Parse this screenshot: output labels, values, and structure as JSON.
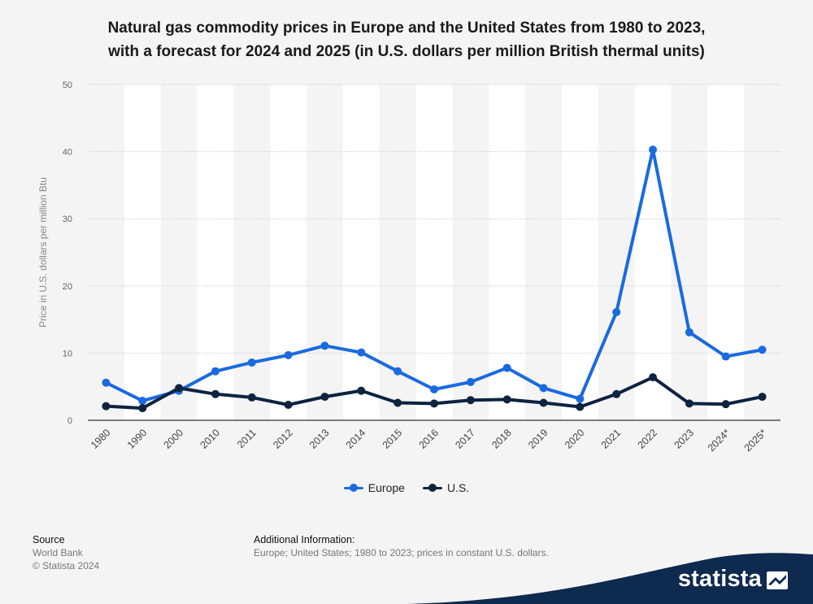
{
  "title_line1": "Natural gas commodity prices in Europe and the United States from 1980 to 2023,",
  "title_line2": "with a forecast for 2024 and 2025 (in U.S. dollars per million British thermal units)",
  "chart_data": {
    "type": "line",
    "title": "Natural gas commodity prices in Europe and the United States from 1980 to 2023, with a forecast for 2024 and 2025 (in U.S. dollars per million British thermal units)",
    "xlabel": "",
    "ylabel": "Price in U.S. dollars per million Btu",
    "categories": [
      "1980",
      "1990",
      "2000",
      "2010",
      "2011",
      "2012",
      "2013",
      "2014",
      "2015",
      "2016",
      "2017",
      "2018",
      "2019",
      "2020",
      "2021",
      "2022",
      "2023",
      "2024*",
      "2025*"
    ],
    "ylim": [
      0,
      50
    ],
    "yticks": [
      0,
      10,
      20,
      30,
      40,
      50
    ],
    "grid": true,
    "legend_position": "bottom",
    "series": [
      {
        "name": "Europe",
        "color": "#1a6ae0",
        "values": [
          5.6,
          2.9,
          4.4,
          7.3,
          8.6,
          9.7,
          11.1,
          10.1,
          7.3,
          4.6,
          5.7,
          7.8,
          4.8,
          3.2,
          16.1,
          40.3,
          13.1,
          9.5,
          10.5
        ]
      },
      {
        "name": "U.S.",
        "color": "#0d2340",
        "values": [
          2.1,
          1.8,
          4.8,
          3.9,
          3.4,
          2.3,
          3.5,
          4.4,
          2.6,
          2.5,
          3.0,
          3.1,
          2.6,
          2.0,
          3.9,
          6.4,
          2.5,
          2.4,
          3.5
        ]
      }
    ]
  },
  "legend": [
    {
      "label": "Europe",
      "color": "#1a6ae0"
    },
    {
      "label": "U.S.",
      "color": "#0d2340"
    }
  ],
  "footer": {
    "source_heading": "Source",
    "source_line1": "World Bank",
    "source_line2": "© Statista 2024",
    "info_heading": "Additional Information:",
    "info_text": "Europe; United States; 1980 to 2023; prices in constant U.S. dollars."
  },
  "brand": {
    "name": "statista",
    "band_color": "#0e2a4e",
    "icon": "statista-logo-icon"
  }
}
